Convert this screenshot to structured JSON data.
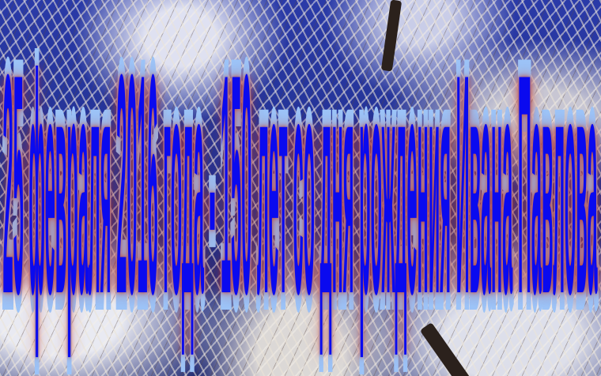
{
  "background": {
    "description_color_sky": "#23318f",
    "frost_color": "#ede6d8"
  },
  "headline": {
    "text": "25 февраля 2016 года - 150 лет со дня рождения Ивана Павлова",
    "fill_color": "#0a0aef",
    "outline_color": "#9cc3f7",
    "glow_color": "#be3c32"
  }
}
